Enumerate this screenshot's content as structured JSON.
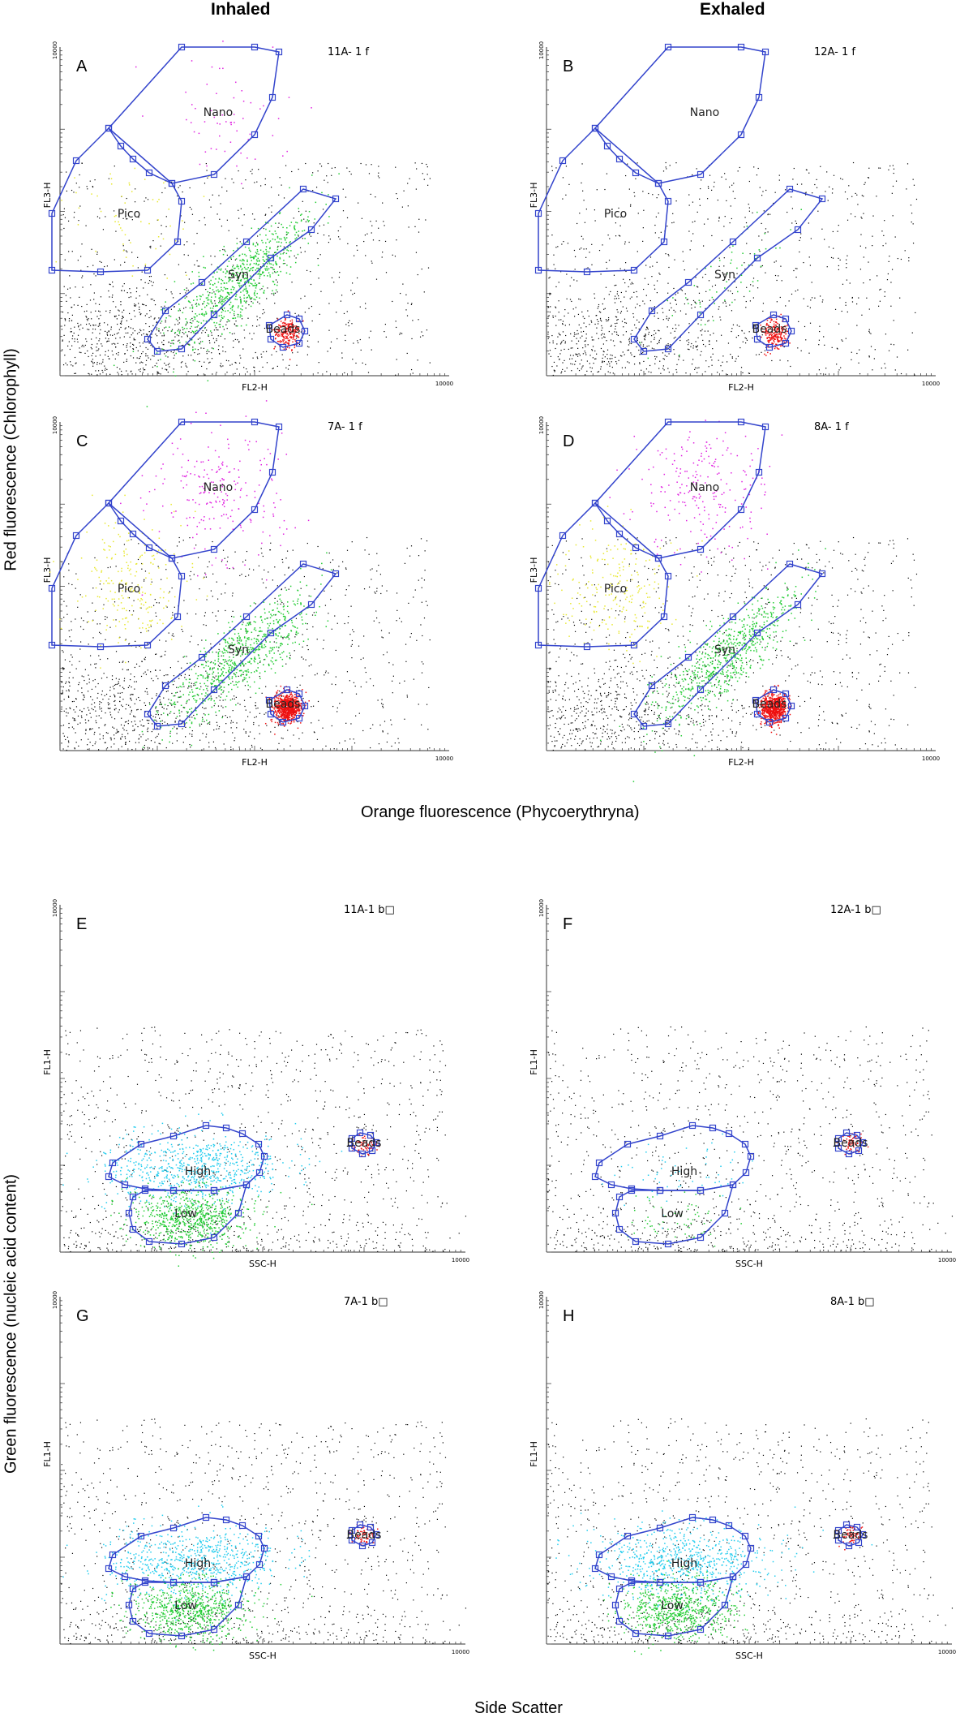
{
  "headers": {
    "left": "Inhaled",
    "right": "Exhaled"
  },
  "y_labels": {
    "top": "Red fluorescence (Chlorophyll)",
    "bottom": "Green fluorescence (nucleic acid content)"
  },
  "x_labels": {
    "top": "Orange fluorescence (Phycoerythryna)",
    "bottom": "Side Scatter"
  },
  "colors": {
    "gate": "#3344cc",
    "events": "#000000",
    "nano": "#e020e0",
    "pico": "#e8e830",
    "syn": "#22cc33",
    "beads": "#ee1111",
    "high": "#22ccee",
    "low": "#22cc33"
  },
  "chart_data": [
    {
      "type": "scatter",
      "panel": "A",
      "sample_id": "11A- 1 f",
      "xlabel": "FL2-H",
      "ylabel": "FL3-H",
      "x_tick_label": "10000",
      "y_tick_label": "10000",
      "xlim": [
        1,
        10000
      ],
      "ylim": [
        1,
        10000
      ],
      "xscale": "log",
      "yscale": "log",
      "populations": [
        {
          "name": "Nano",
          "color": "#e020e0",
          "density": "low"
        },
        {
          "name": "Pico",
          "color": "#e8e830",
          "density": "low"
        },
        {
          "name": "Syn",
          "color": "#22cc33",
          "density": "high"
        },
        {
          "name": "Beads",
          "color": "#ee1111",
          "density": "medium"
        }
      ]
    },
    {
      "type": "scatter",
      "panel": "B",
      "sample_id": "12A- 1 f",
      "xlabel": "FL2-H",
      "ylabel": "FL3-H",
      "x_tick_label": "10000",
      "y_tick_label": "10000",
      "xlim": [
        1,
        10000
      ],
      "ylim": [
        1,
        10000
      ],
      "xscale": "log",
      "yscale": "log",
      "populations": [
        {
          "name": "Nano",
          "color": "#e020e0",
          "density": "none"
        },
        {
          "name": "Pico",
          "color": "#e8e830",
          "density": "none"
        },
        {
          "name": "Syn",
          "color": "#22cc33",
          "density": "low"
        },
        {
          "name": "Beads",
          "color": "#ee1111",
          "density": "medium"
        }
      ]
    },
    {
      "type": "scatter",
      "panel": "C",
      "sample_id": "7A- 1 f",
      "xlabel": "FL2-H",
      "ylabel": "FL3-H",
      "x_tick_label": "10000",
      "y_tick_label": "10000",
      "xlim": [
        1,
        10000
      ],
      "ylim": [
        1,
        10000
      ],
      "xscale": "log",
      "yscale": "log",
      "populations": [
        {
          "name": "Nano",
          "color": "#e020e0",
          "density": "medium"
        },
        {
          "name": "Pico",
          "color": "#e8e830",
          "density": "medium"
        },
        {
          "name": "Syn",
          "color": "#22cc33",
          "density": "high"
        },
        {
          "name": "Beads",
          "color": "#ee1111",
          "density": "high"
        }
      ]
    },
    {
      "type": "scatter",
      "panel": "D",
      "sample_id": "8A- 1 f",
      "xlabel": "FL2-H",
      "ylabel": "FL3-H",
      "x_tick_label": "10000",
      "y_tick_label": "10000",
      "xlim": [
        1,
        10000
      ],
      "ylim": [
        1,
        10000
      ],
      "xscale": "log",
      "yscale": "log",
      "populations": [
        {
          "name": "Nano",
          "color": "#e020e0",
          "density": "medium"
        },
        {
          "name": "Pico",
          "color": "#e8e830",
          "density": "medium"
        },
        {
          "name": "Syn",
          "color": "#22cc33",
          "density": "high"
        },
        {
          "name": "Beads",
          "color": "#ee1111",
          "density": "high"
        }
      ]
    },
    {
      "type": "scatter",
      "panel": "E",
      "sample_id": "11A-1 b□",
      "xlabel": "SSC-H",
      "ylabel": "FL1-H",
      "x_tick_label": "10000",
      "y_tick_label": "10000",
      "xlim": [
        1,
        10000
      ],
      "ylim": [
        1,
        10000
      ],
      "xscale": "log",
      "yscale": "log",
      "populations": [
        {
          "name": "High",
          "color": "#22ccee",
          "density": "high"
        },
        {
          "name": "Low",
          "color": "#22cc33",
          "density": "high"
        },
        {
          "name": "Beads",
          "color": "#ee1111",
          "density": "low"
        }
      ]
    },
    {
      "type": "scatter",
      "panel": "F",
      "sample_id": "12A-1 b□",
      "xlabel": "SSC-H",
      "ylabel": "FL1-H",
      "x_tick_label": "10000",
      "y_tick_label": "10000",
      "xlim": [
        1,
        10000
      ],
      "ylim": [
        1,
        10000
      ],
      "xscale": "log",
      "yscale": "log",
      "populations": [
        {
          "name": "High",
          "color": "#22ccee",
          "density": "low"
        },
        {
          "name": "Low",
          "color": "#22cc33",
          "density": "low"
        },
        {
          "name": "Beads",
          "color": "#ee1111",
          "density": "low"
        }
      ]
    },
    {
      "type": "scatter",
      "panel": "G",
      "sample_id": "7A-1 b□",
      "xlabel": "SSC-H",
      "ylabel": "FL1-H",
      "x_tick_label": "10000",
      "y_tick_label": "10000",
      "xlim": [
        1,
        10000
      ],
      "ylim": [
        1,
        10000
      ],
      "xscale": "log",
      "yscale": "log",
      "populations": [
        {
          "name": "High",
          "color": "#22ccee",
          "density": "high"
        },
        {
          "name": "Low",
          "color": "#22cc33",
          "density": "high"
        },
        {
          "name": "Beads",
          "color": "#ee1111",
          "density": "low"
        }
      ]
    },
    {
      "type": "scatter",
      "panel": "H",
      "sample_id": "8A-1 b□",
      "xlabel": "SSC-H",
      "ylabel": "FL1-H",
      "x_tick_label": "10000",
      "y_tick_label": "10000",
      "xlim": [
        1,
        10000
      ],
      "ylim": [
        1,
        10000
      ],
      "xscale": "log",
      "yscale": "log",
      "populations": [
        {
          "name": "High",
          "color": "#22ccee",
          "density": "high"
        },
        {
          "name": "Low",
          "color": "#22cc33",
          "density": "high"
        },
        {
          "name": "Beads",
          "color": "#ee1111",
          "density": "low"
        }
      ]
    }
  ]
}
